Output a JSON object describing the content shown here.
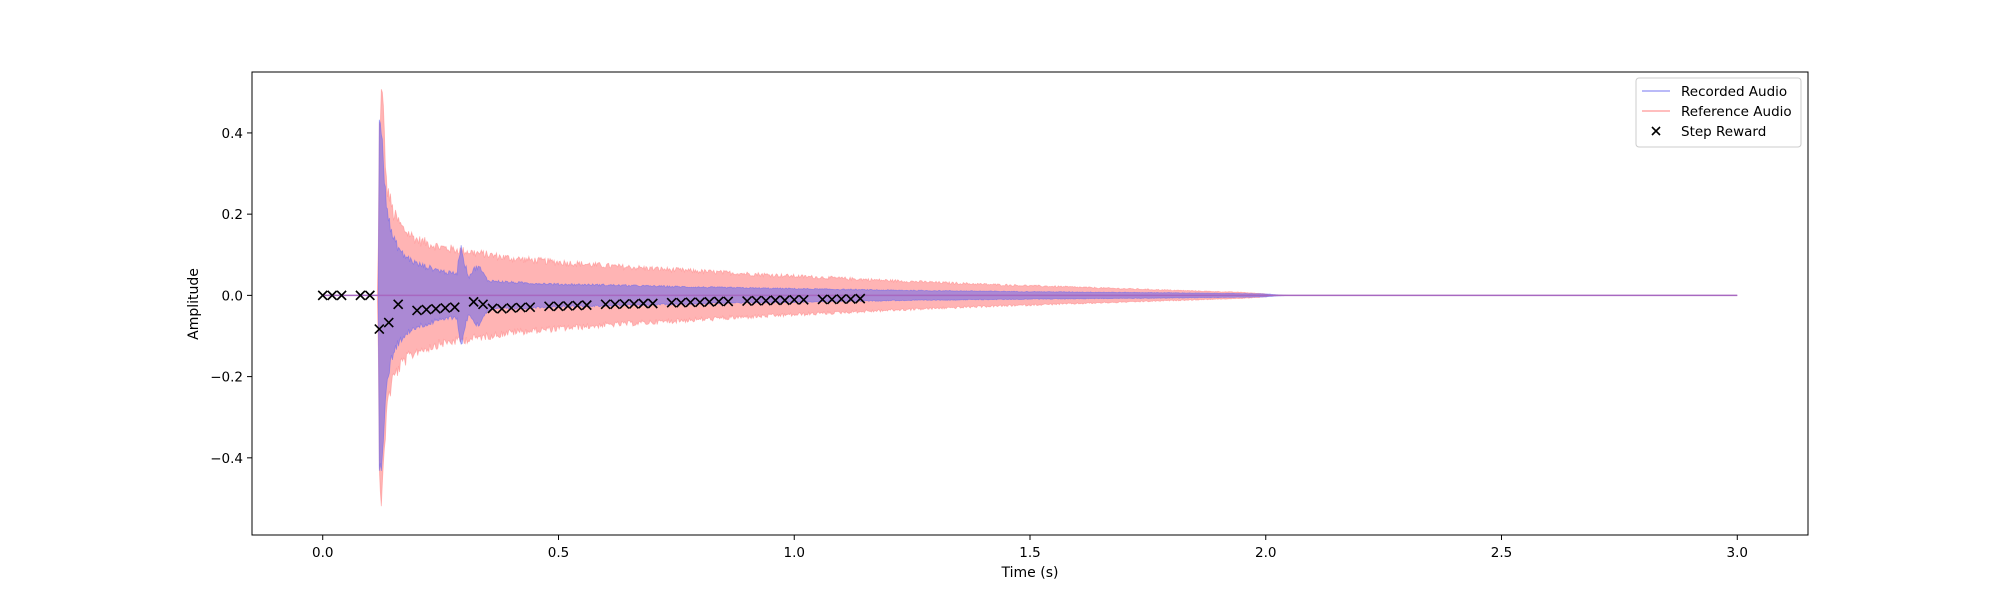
{
  "chart_data": {
    "type": "line",
    "title": "",
    "xlabel": "Time (s)",
    "ylabel": "Amplitude",
    "xlim": [
      -0.15,
      3.15
    ],
    "ylim": [
      -0.59,
      0.55
    ],
    "x_ticks": [
      0.0,
      0.5,
      1.0,
      1.5,
      2.0,
      2.5,
      3.0
    ],
    "x_tick_labels": [
      "0.0",
      "0.5",
      "1.0",
      "1.5",
      "2.0",
      "2.5",
      "3.0"
    ],
    "y_ticks": [
      -0.4,
      -0.2,
      0.0,
      0.2,
      0.4
    ],
    "y_tick_labels": [
      "−0.4",
      "−0.2",
      "0.0",
      "0.2",
      "0.4"
    ],
    "grid": false,
    "legend_position": "top-right",
    "series": [
      {
        "name": "Recorded Audio",
        "kind": "band",
        "color": "#6666ee",
        "envelope": [
          [
            0.0,
            0.0
          ],
          [
            0.118,
            0.0
          ],
          [
            0.12,
            0.47
          ],
          [
            0.123,
            0.49
          ],
          [
            0.127,
            0.44
          ],
          [
            0.132,
            0.3
          ],
          [
            0.14,
            0.2
          ],
          [
            0.15,
            0.15
          ],
          [
            0.17,
            0.11
          ],
          [
            0.2,
            0.085
          ],
          [
            0.24,
            0.07
          ],
          [
            0.27,
            0.06
          ],
          [
            0.285,
            0.06
          ],
          [
            0.29,
            0.12
          ],
          [
            0.295,
            0.13
          ],
          [
            0.3,
            0.09
          ],
          [
            0.31,
            0.05
          ],
          [
            0.32,
            0.07
          ],
          [
            0.33,
            0.08
          ],
          [
            0.35,
            0.04
          ],
          [
            0.4,
            0.035
          ],
          [
            0.5,
            0.03
          ],
          [
            0.6,
            0.028
          ],
          [
            0.8,
            0.022
          ],
          [
            1.0,
            0.018
          ],
          [
            1.2,
            0.014
          ],
          [
            1.5,
            0.01
          ],
          [
            1.8,
            0.007
          ],
          [
            2.0,
            0.004
          ],
          [
            2.02,
            0.002
          ],
          [
            2.05,
            0.0
          ],
          [
            3.0,
            0.0
          ]
        ]
      },
      {
        "name": "Reference Audio",
        "kind": "band",
        "color": "#ff8c8c",
        "envelope": [
          [
            0.0,
            0.0
          ],
          [
            0.115,
            0.0
          ],
          [
            0.117,
            0.003
          ],
          [
            0.12,
            0.45
          ],
          [
            0.125,
            0.55
          ],
          [
            0.13,
            0.46
          ],
          [
            0.135,
            0.3
          ],
          [
            0.15,
            0.22
          ],
          [
            0.17,
            0.18
          ],
          [
            0.2,
            0.15
          ],
          [
            0.25,
            0.13
          ],
          [
            0.3,
            0.12
          ],
          [
            0.4,
            0.1
          ],
          [
            0.5,
            0.09
          ],
          [
            0.6,
            0.08
          ],
          [
            0.8,
            0.065
          ],
          [
            1.0,
            0.052
          ],
          [
            1.2,
            0.04
          ],
          [
            1.4,
            0.03
          ],
          [
            1.6,
            0.022
          ],
          [
            1.8,
            0.014
          ],
          [
            1.95,
            0.008
          ],
          [
            2.0,
            0.004
          ],
          [
            2.01,
            0.0
          ],
          [
            3.0,
            0.0
          ]
        ]
      },
      {
        "name": "Step Reward",
        "kind": "scatter",
        "marker": "x",
        "color": "#000000",
        "points": [
          [
            0.0,
            0.0
          ],
          [
            0.02,
            0.0
          ],
          [
            0.04,
            0.0
          ],
          [
            0.08,
            0.0
          ],
          [
            0.1,
            0.0
          ],
          [
            0.12,
            -0.083
          ],
          [
            0.14,
            -0.067
          ],
          [
            0.16,
            -0.022
          ],
          [
            0.2,
            -0.037
          ],
          [
            0.22,
            -0.035
          ],
          [
            0.24,
            -0.033
          ],
          [
            0.26,
            -0.031
          ],
          [
            0.28,
            -0.029
          ],
          [
            0.32,
            -0.016
          ],
          [
            0.34,
            -0.022
          ],
          [
            0.36,
            -0.032
          ],
          [
            0.38,
            -0.033
          ],
          [
            0.4,
            -0.031
          ],
          [
            0.42,
            -0.03
          ],
          [
            0.44,
            -0.029
          ],
          [
            0.48,
            -0.027
          ],
          [
            0.5,
            -0.027
          ],
          [
            0.52,
            -0.026
          ],
          [
            0.54,
            -0.025
          ],
          [
            0.56,
            -0.024
          ],
          [
            0.6,
            -0.022
          ],
          [
            0.62,
            -0.022
          ],
          [
            0.64,
            -0.021
          ],
          [
            0.66,
            -0.021
          ],
          [
            0.68,
            -0.02
          ],
          [
            0.7,
            -0.02
          ],
          [
            0.74,
            -0.018
          ],
          [
            0.76,
            -0.018
          ],
          [
            0.78,
            -0.017
          ],
          [
            0.8,
            -0.017
          ],
          [
            0.82,
            -0.016
          ],
          [
            0.84,
            -0.015
          ],
          [
            0.86,
            -0.015
          ],
          [
            0.9,
            -0.014
          ],
          [
            0.92,
            -0.013
          ],
          [
            0.94,
            -0.013
          ],
          [
            0.96,
            -0.012
          ],
          [
            0.98,
            -0.012
          ],
          [
            1.0,
            -0.011
          ],
          [
            1.02,
            -0.011
          ],
          [
            1.06,
            -0.01
          ],
          [
            1.08,
            -0.01
          ],
          [
            1.1,
            -0.009
          ],
          [
            1.12,
            -0.009
          ],
          [
            1.14,
            -0.008
          ]
        ]
      }
    ],
    "baseline": {
      "x_range": [
        0.0,
        3.0
      ],
      "y": 0.0,
      "color": "#a868c0"
    }
  }
}
